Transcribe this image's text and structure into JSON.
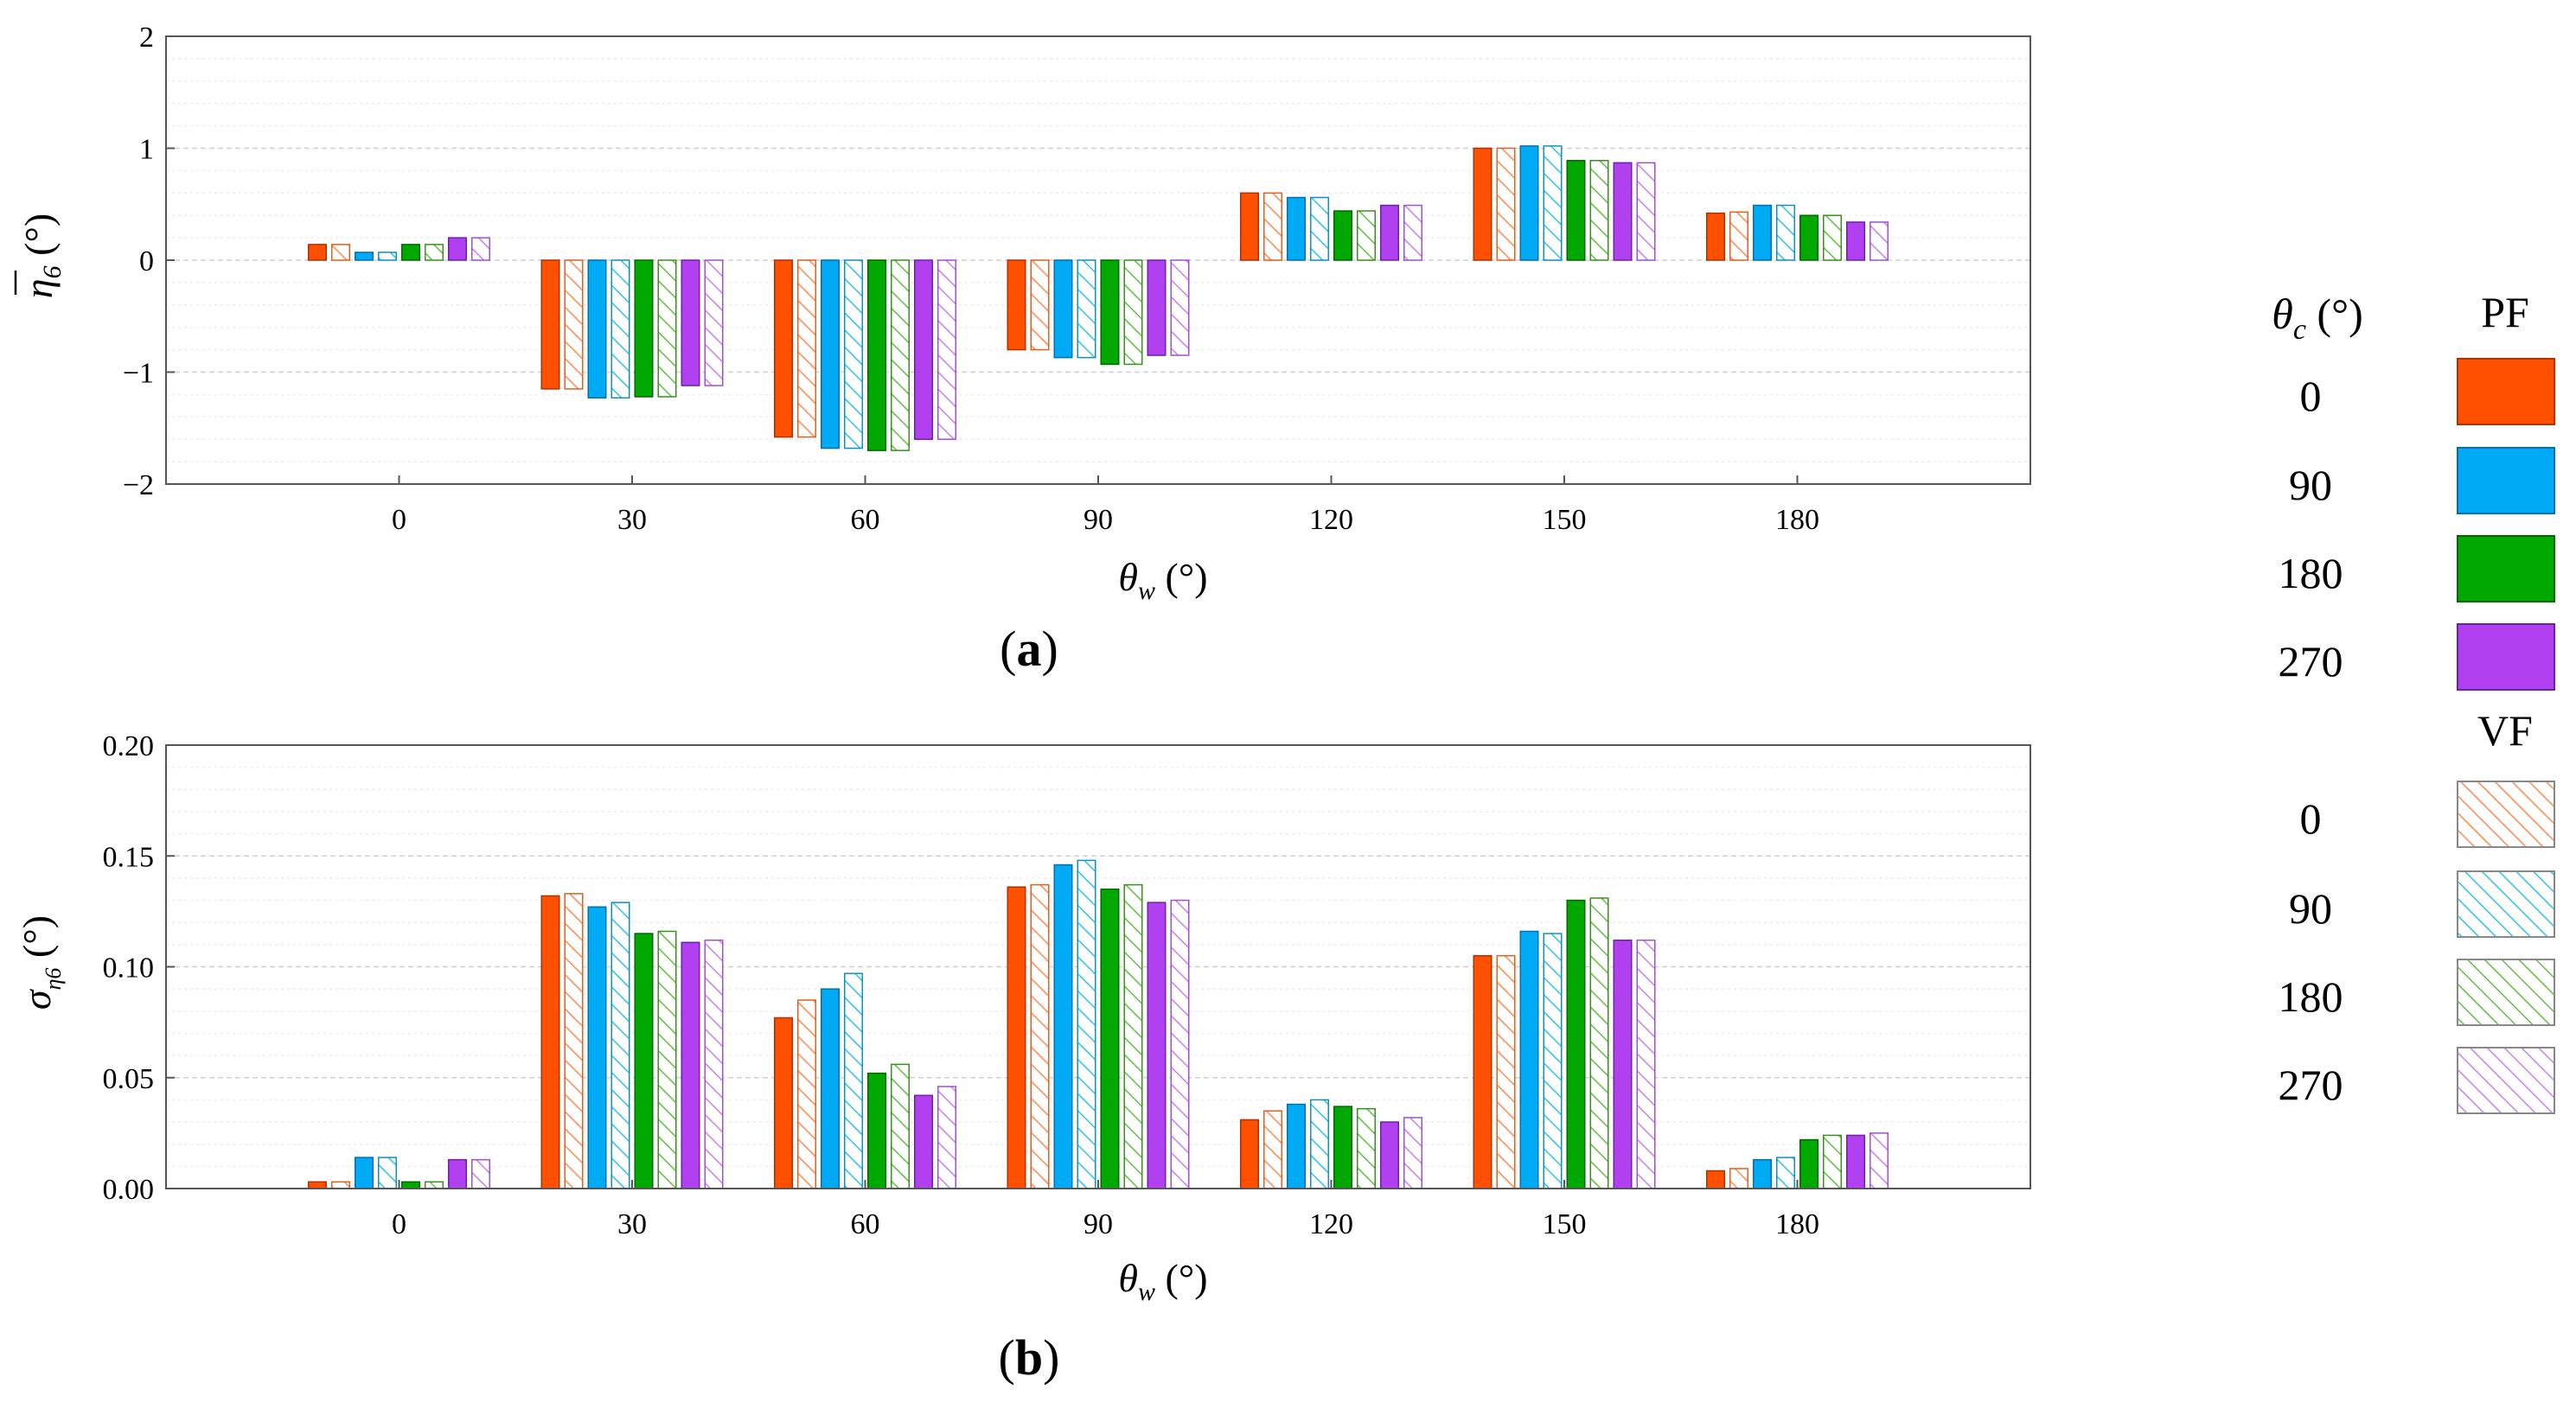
{
  "chart_data": [
    {
      "type": "bar",
      "panel_label": "(a)",
      "panel_label_bold": "a",
      "xlabel_symbol": "θ",
      "xlabel_sub": "w",
      "xlabel_unit": " (°)",
      "ylabel_symbol": "η",
      "ylabel_sub": "6",
      "ylabel_unit": " (°)",
      "ylabel_overbar": true,
      "categories": [
        "0",
        "30",
        "60",
        "90",
        "120",
        "150",
        "180"
      ],
      "ylim": [
        -2,
        2
      ],
      "yticks": [
        -2,
        -1,
        0,
        1,
        2
      ],
      "ytick_labels": [
        "−2",
        "−1",
        "0",
        "1",
        "2"
      ],
      "grid": true,
      "series": [
        {
          "name": "PF 0",
          "values": [
            0.14,
            -1.15,
            -1.58,
            -0.8,
            0.6,
            1.0,
            0.42
          ]
        },
        {
          "name": "VF 0",
          "values": [
            0.14,
            -1.15,
            -1.58,
            -0.8,
            0.6,
            1.0,
            0.43
          ]
        },
        {
          "name": "PF 90",
          "values": [
            0.07,
            -1.23,
            -1.68,
            -0.87,
            0.56,
            1.02,
            0.49
          ]
        },
        {
          "name": "VF 90",
          "values": [
            0.07,
            -1.23,
            -1.68,
            -0.87,
            0.56,
            1.02,
            0.49
          ]
        },
        {
          "name": "PF 180",
          "values": [
            0.14,
            -1.22,
            -1.7,
            -0.93,
            0.44,
            0.89,
            0.4
          ]
        },
        {
          "name": "VF 180",
          "values": [
            0.14,
            -1.22,
            -1.7,
            -0.93,
            0.44,
            0.89,
            0.4
          ]
        },
        {
          "name": "PF 270",
          "values": [
            0.2,
            -1.12,
            -1.6,
            -0.85,
            0.49,
            0.87,
            0.34
          ]
        },
        {
          "name": "VF 270",
          "values": [
            0.2,
            -1.12,
            -1.6,
            -0.85,
            0.49,
            0.87,
            0.34
          ]
        }
      ]
    },
    {
      "type": "bar",
      "panel_label": "(b)",
      "panel_label_bold": "b",
      "xlabel_symbol": "θ",
      "xlabel_sub": "w",
      "xlabel_unit": " (°)",
      "ylabel_symbol": "σ",
      "ylabel_sub": "η6",
      "ylabel_unit": " (°)",
      "ylabel_overbar": false,
      "categories": [
        "0",
        "30",
        "60",
        "90",
        "120",
        "150",
        "180"
      ],
      "ylim": [
        0,
        0.2
      ],
      "yticks": [
        0,
        0.05,
        0.1,
        0.15,
        0.2
      ],
      "ytick_labels": [
        "0.00",
        "0.05",
        "0.10",
        "0.15",
        "0.20"
      ],
      "grid": true,
      "series": [
        {
          "name": "PF 0",
          "values": [
            0.003,
            0.132,
            0.077,
            0.136,
            0.031,
            0.105,
            0.008
          ]
        },
        {
          "name": "VF 0",
          "values": [
            0.003,
            0.133,
            0.085,
            0.137,
            0.035,
            0.105,
            0.009
          ]
        },
        {
          "name": "PF 90",
          "values": [
            0.014,
            0.127,
            0.09,
            0.146,
            0.038,
            0.116,
            0.013
          ]
        },
        {
          "name": "VF 90",
          "values": [
            0.014,
            0.129,
            0.097,
            0.148,
            0.04,
            0.115,
            0.014
          ]
        },
        {
          "name": "PF 180",
          "values": [
            0.003,
            0.115,
            0.052,
            0.135,
            0.037,
            0.13,
            0.022
          ]
        },
        {
          "name": "VF 180",
          "values": [
            0.003,
            0.116,
            0.056,
            0.137,
            0.036,
            0.131,
            0.024
          ]
        },
        {
          "name": "PF 270",
          "values": [
            0.013,
            0.111,
            0.042,
            0.129,
            0.03,
            0.112,
            0.024
          ]
        },
        {
          "name": "VF 270",
          "values": [
            0.013,
            0.112,
            0.046,
            0.13,
            0.032,
            0.112,
            0.025
          ]
        }
      ]
    }
  ],
  "legend": {
    "header_symbol": "θ",
    "header_sub": "c",
    "header_unit": " (°)",
    "pf_title": "PF",
    "vf_title": "VF",
    "placement": "right",
    "entries": [
      {
        "label": "0",
        "color": "#FF5000",
        "stroke": "#B03000"
      },
      {
        "label": "90",
        "color": "#00AAF5",
        "stroke": "#0070B0"
      },
      {
        "label": "180",
        "color": "#00A800",
        "stroke": "#006A00"
      },
      {
        "label": "270",
        "color": "#B040F0",
        "stroke": "#7020A8"
      }
    ],
    "vf_entries": [
      {
        "label": "0",
        "color": "#FF8A50",
        "stroke": "#E06020"
      },
      {
        "label": "90",
        "color": "#30C0F0",
        "stroke": "#1090C0"
      },
      {
        "label": "180",
        "color": "#60C040",
        "stroke": "#389020"
      },
      {
        "label": "270",
        "color": "#C880F0",
        "stroke": "#A050D0"
      }
    ]
  }
}
